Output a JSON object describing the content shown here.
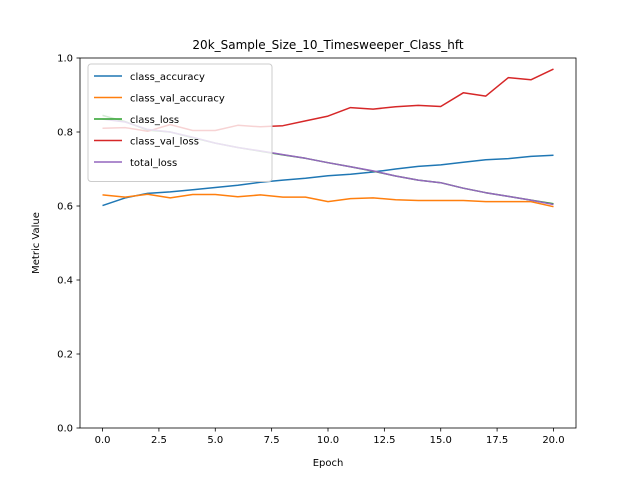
{
  "chart_data": {
    "type": "line",
    "title": "20k_Sample_Size_10_Timesweeper_Class_hft",
    "xlabel": "Epoch",
    "ylabel": "Metric Value",
    "xlim": [
      -1,
      21
    ],
    "ylim": [
      0,
      1.0
    ],
    "xticks": [
      "0.0",
      "2.5",
      "5.0",
      "7.5",
      "10.0",
      "12.5",
      "15.0",
      "17.5",
      "20.0"
    ],
    "yticks": [
      "0.0",
      "0.2",
      "0.4",
      "0.6",
      "0.8",
      "1.0"
    ],
    "legend_position": "upper-left",
    "grid": false,
    "x": [
      0,
      1,
      2,
      3,
      4,
      5,
      6,
      7,
      8,
      9,
      10,
      11,
      12,
      13,
      14,
      15,
      16,
      17,
      18,
      19,
      20
    ],
    "series": [
      {
        "name": "class_accuracy",
        "color": "#1f77b4",
        "values": [
          0.601,
          0.622,
          0.634,
          0.638,
          0.644,
          0.65,
          0.656,
          0.664,
          0.67,
          0.675,
          0.682,
          0.686,
          0.692,
          0.7,
          0.707,
          0.711,
          0.718,
          0.725,
          0.728,
          0.734,
          0.737
        ]
      },
      {
        "name": "class_val_accuracy",
        "color": "#ff7f0e",
        "values": [
          0.63,
          0.624,
          0.632,
          0.622,
          0.631,
          0.631,
          0.625,
          0.63,
          0.624,
          0.624,
          0.612,
          0.62,
          0.622,
          0.617,
          0.615,
          0.615,
          0.615,
          0.612,
          0.612,
          0.612,
          0.598
        ]
      },
      {
        "name": "class_loss",
        "color": "#2ca02c",
        "values": [
          0.845,
          0.828,
          0.805,
          0.8,
          0.785,
          0.77,
          0.758,
          0.748,
          0.738,
          0.729,
          0.717,
          0.706,
          0.694,
          0.681,
          0.67,
          0.663,
          0.648,
          0.636,
          0.626,
          0.616,
          0.606
        ]
      },
      {
        "name": "class_val_loss",
        "color": "#d62728",
        "values": [
          0.81,
          0.812,
          0.802,
          0.82,
          0.804,
          0.804,
          0.818,
          0.814,
          0.817,
          0.83,
          0.843,
          0.866,
          0.862,
          0.868,
          0.872,
          0.869,
          0.906,
          0.897,
          0.947,
          0.941,
          0.97
        ]
      },
      {
        "name": "total_loss",
        "color": "#9467bd",
        "values": [
          0.835,
          0.827,
          0.807,
          0.8,
          0.786,
          0.77,
          0.758,
          0.749,
          0.739,
          0.729,
          0.717,
          0.706,
          0.695,
          0.681,
          0.67,
          0.663,
          0.648,
          0.636,
          0.626,
          0.616,
          0.604
        ]
      }
    ]
  }
}
